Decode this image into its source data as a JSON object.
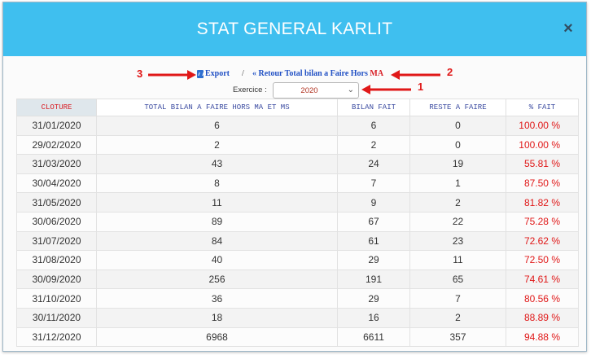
{
  "modal": {
    "title": "STAT GENERAL KARLIT",
    "close_label": "×"
  },
  "toolbar": {
    "export_label": "Export",
    "separator": "/",
    "back_prefix": "«",
    "back_label": "Retour Total bilan a Faire Hors ",
    "back_emphasis": "MA"
  },
  "exercice": {
    "label": "Exercice :",
    "selected": "2020"
  },
  "annotations": {
    "n1": "1",
    "n2": "2",
    "n3": "3",
    "color": "#e01818"
  },
  "table": {
    "headers": [
      "CLOTURE",
      "TOTAL BILAN A FAIRE HORS MA ET MS",
      "BILAN FAIT",
      "RESTE A FAIRE",
      "% FAIT"
    ],
    "rows": [
      [
        "31/01/2020",
        "6",
        "6",
        "0",
        "100.00 %"
      ],
      [
        "29/02/2020",
        "2",
        "2",
        "0",
        "100.00 %"
      ],
      [
        "31/03/2020",
        "43",
        "24",
        "19",
        "55.81 %"
      ],
      [
        "30/04/2020",
        "8",
        "7",
        "1",
        "87.50 %"
      ],
      [
        "31/05/2020",
        "11",
        "9",
        "2",
        "81.82 %"
      ],
      [
        "30/06/2020",
        "89",
        "67",
        "22",
        "75.28 %"
      ],
      [
        "31/07/2020",
        "84",
        "61",
        "23",
        "72.62 %"
      ],
      [
        "31/08/2020",
        "40",
        "29",
        "11",
        "72.50 %"
      ],
      [
        "30/09/2020",
        "256",
        "191",
        "65",
        "74.61 %"
      ],
      [
        "31/10/2020",
        "36",
        "29",
        "7",
        "80.56 %"
      ],
      [
        "30/11/2020",
        "18",
        "16",
        "2",
        "88.89 %"
      ],
      [
        "31/12/2020",
        "6968",
        "6611",
        "357",
        "94.88 %"
      ]
    ]
  },
  "colors": {
    "header_bg": "#3fbfef",
    "link": "#1f4fc4",
    "percent": "#e01818"
  },
  "icons": {
    "export": "excel-icon",
    "close": "close-icon",
    "select": "chevron-down-icon"
  }
}
